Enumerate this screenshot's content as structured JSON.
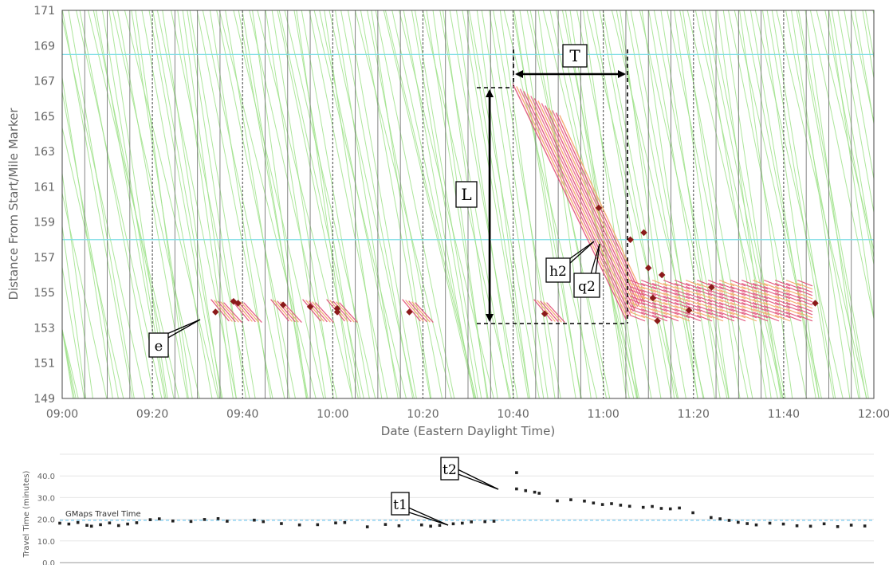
{
  "chart_data": [
    {
      "type": "scatter",
      "title": "",
      "xlabel": "Date (Eastern Daylight Time)",
      "ylabel": "Distance From Start/Mile Marker",
      "xlim": [
        "09:00",
        "12:00"
      ],
      "ylim": [
        149,
        171
      ],
      "x_ticks": [
        "09:00",
        "09:20",
        "09:40",
        "10:00",
        "10:20",
        "10:40",
        "11:00",
        "11:20",
        "11:40",
        "12:00"
      ],
      "y_ticks": [
        "149",
        "151",
        "153",
        "155",
        "157",
        "159",
        "161",
        "163",
        "165",
        "167",
        "169",
        "171"
      ],
      "reference_lines": [
        168.5,
        158.0
      ],
      "vertical_grid_minutes": 5,
      "background_trajectories_color": "#9fe28a",
      "congestion_color": "#e2507a",
      "congestion_alt_color": "#f4a66a",
      "incident_marker_color": "#8b1a1a",
      "incident_markers": [
        {
          "x": "09:34",
          "y": 153.9
        },
        {
          "x": "09:38",
          "y": 154.5
        },
        {
          "x": "09:39",
          "y": 154.4
        },
        {
          "x": "09:49",
          "y": 154.3
        },
        {
          "x": "09:55",
          "y": 154.2
        },
        {
          "x": "10:01",
          "y": 154.1
        },
        {
          "x": "10:01",
          "y": 153.9
        },
        {
          "x": "10:17",
          "y": 153.9
        },
        {
          "x": "10:47",
          "y": 153.8
        },
        {
          "x": "10:59",
          "y": 159.8
        },
        {
          "x": "11:06",
          "y": 158.0
        },
        {
          "x": "11:09",
          "y": 158.4
        },
        {
          "x": "11:10",
          "y": 156.4
        },
        {
          "x": "11:11",
          "y": 154.7
        },
        {
          "x": "11:12",
          "y": 153.4
        },
        {
          "x": "11:13",
          "y": 156.0
        },
        {
          "x": "11:19",
          "y": 154.0
        },
        {
          "x": "11:24",
          "y": 155.3
        },
        {
          "x": "11:47",
          "y": 154.4
        }
      ],
      "annotations": {
        "T": "T",
        "L": "L",
        "h2": "h2",
        "q2": "q2",
        "e": "e"
      }
    },
    {
      "type": "scatter",
      "title": "",
      "xlabel": "",
      "ylabel": "Travel Time (minutes)",
      "ylim": [
        0,
        50
      ],
      "y_ticks": [
        "0.0",
        "10.0",
        "20.0",
        "30.0",
        "40.0"
      ],
      "reference_line": {
        "label": "GMaps Travel Time",
        "value": 19.5,
        "color": "#6ec6ee"
      },
      "series": [
        {
          "points": [
            {
              "x": "09:00",
              "y": 18.2
            },
            {
              "x": "09:02",
              "y": 17.8
            },
            {
              "x": "09:04",
              "y": 18.5
            },
            {
              "x": "09:06",
              "y": 17.2
            },
            {
              "x": "09:07",
              "y": 16.8
            },
            {
              "x": "09:09",
              "y": 17.5
            },
            {
              "x": "09:11",
              "y": 18.3
            },
            {
              "x": "09:13",
              "y": 17.1
            },
            {
              "x": "09:15",
              "y": 17.8
            },
            {
              "x": "09:17",
              "y": 18.4
            },
            {
              "x": "09:20",
              "y": 19.8
            },
            {
              "x": "09:22",
              "y": 20.2
            },
            {
              "x": "09:25",
              "y": 19.2
            },
            {
              "x": "09:29",
              "y": 19.0
            },
            {
              "x": "09:32",
              "y": 19.9
            },
            {
              "x": "09:35",
              "y": 20.3
            },
            {
              "x": "09:37",
              "y": 19.1
            },
            {
              "x": "09:43",
              "y": 19.6
            },
            {
              "x": "09:45",
              "y": 18.9
            },
            {
              "x": "09:49",
              "y": 18.0
            },
            {
              "x": "09:53",
              "y": 17.4
            },
            {
              "x": "09:57",
              "y": 17.5
            },
            {
              "x": "10:01",
              "y": 18.3
            },
            {
              "x": "10:03",
              "y": 18.5
            },
            {
              "x": "10:08",
              "y": 16.5
            },
            {
              "x": "10:12",
              "y": 17.6
            },
            {
              "x": "10:15",
              "y": 17.0
            },
            {
              "x": "10:20",
              "y": 17.4
            },
            {
              "x": "10:22",
              "y": 16.8
            },
            {
              "x": "10:24",
              "y": 17.2
            },
            {
              "x": "10:27",
              "y": 17.9
            },
            {
              "x": "10:29",
              "y": 18.2
            },
            {
              "x": "10:31",
              "y": 18.8
            },
            {
              "x": "10:34",
              "y": 18.9
            },
            {
              "x": "10:36",
              "y": 19.1
            },
            {
              "x": "10:41",
              "y": 41.5
            },
            {
              "x": "10:41",
              "y": 34.0
            },
            {
              "x": "10:43",
              "y": 33.2
            },
            {
              "x": "10:45",
              "y": 32.5
            },
            {
              "x": "10:46",
              "y": 32.0
            },
            {
              "x": "10:50",
              "y": 28.5
            },
            {
              "x": "10:53",
              "y": 29.0
            },
            {
              "x": "10:56",
              "y": 28.4
            },
            {
              "x": "10:58",
              "y": 27.5
            },
            {
              "x": "11:00",
              "y": 26.8
            },
            {
              "x": "11:02",
              "y": 27.2
            },
            {
              "x": "11:04",
              "y": 26.5
            },
            {
              "x": "11:06",
              "y": 26.0
            },
            {
              "x": "11:09",
              "y": 25.5
            },
            {
              "x": "11:11",
              "y": 25.9
            },
            {
              "x": "11:13",
              "y": 25.0
            },
            {
              "x": "11:15",
              "y": 24.8
            },
            {
              "x": "11:17",
              "y": 25.2
            },
            {
              "x": "11:20",
              "y": 23.0
            },
            {
              "x": "11:24",
              "y": 20.8
            },
            {
              "x": "11:26",
              "y": 20.2
            },
            {
              "x": "11:28",
              "y": 19.5
            },
            {
              "x": "11:30",
              "y": 18.6
            },
            {
              "x": "11:32",
              "y": 18.0
            },
            {
              "x": "11:34",
              "y": 17.4
            },
            {
              "x": "11:37",
              "y": 18.2
            },
            {
              "x": "11:40",
              "y": 17.8
            },
            {
              "x": "11:43",
              "y": 17.0
            },
            {
              "x": "11:46",
              "y": 16.8
            },
            {
              "x": "11:49",
              "y": 17.9
            },
            {
              "x": "11:52",
              "y": 16.6
            },
            {
              "x": "11:55",
              "y": 17.3
            },
            {
              "x": "11:58",
              "y": 16.9
            }
          ]
        }
      ],
      "annotations": {
        "t1": "t1",
        "t2": "t2"
      }
    }
  ]
}
